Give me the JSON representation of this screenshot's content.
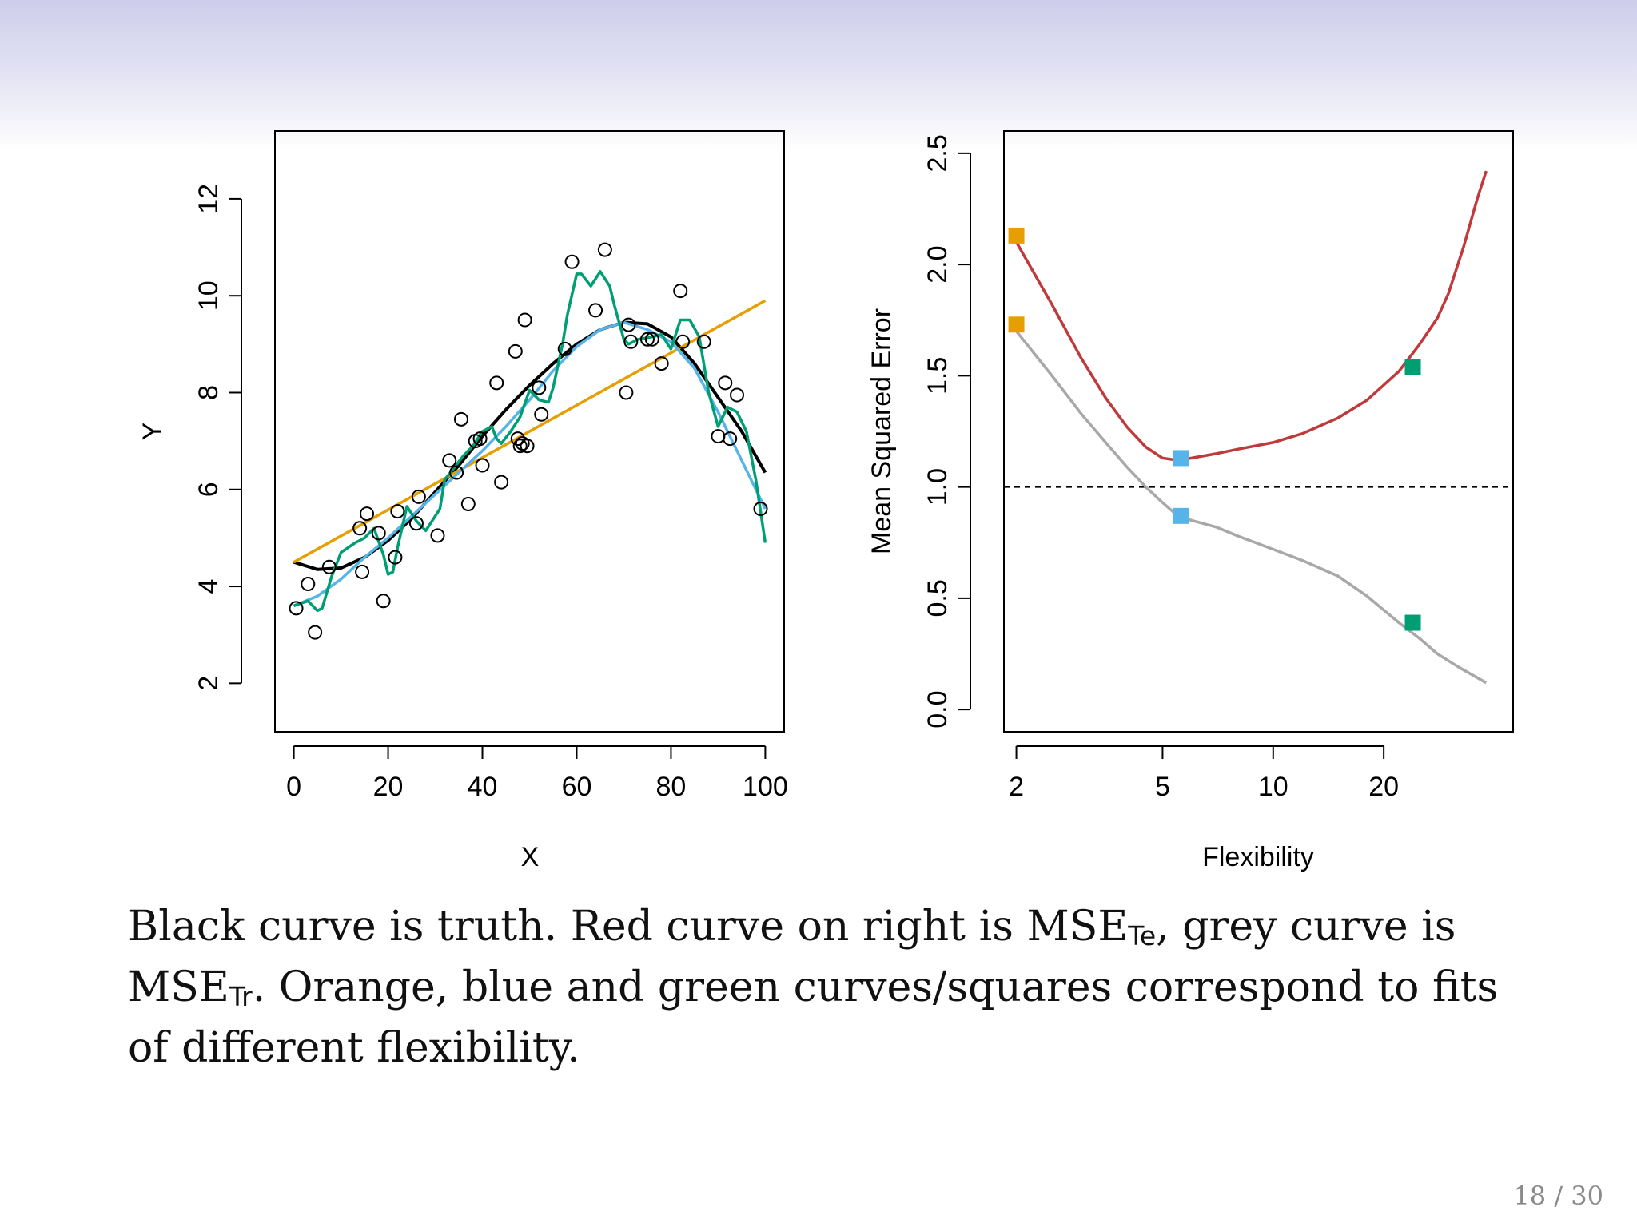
{
  "slide": {
    "caption": {
      "part1": "Black curve is truth. Red curve on right is MSE",
      "sub_te": "Te",
      "part2": ", grey curve is MSE",
      "sub_tr": "Tr",
      "part3": ". Orange, blue and green curves/squares correspond to fits of different flexibility."
    },
    "page_number": "18 / 30"
  },
  "chart_data": [
    {
      "type": "scatter",
      "xlabel": "X",
      "ylabel": "Y",
      "xlim": [
        -4,
        104
      ],
      "ylim": [
        1,
        13.4
      ],
      "x_ticks": [
        0,
        20,
        40,
        60,
        80,
        100
      ],
      "y_ticks": [
        2,
        4,
        6,
        8,
        10,
        12
      ],
      "grid": false,
      "points": {
        "x": [
          0.5,
          3,
          4.5,
          7.5,
          14,
          14.5,
          15.5,
          18,
          19,
          21.5,
          22,
          26,
          26.5,
          30.5,
          33,
          34.5,
          35.5,
          37,
          38.5,
          39.5,
          40,
          43,
          44,
          47,
          47.5,
          48,
          48.5,
          49,
          49.5,
          52,
          52.5,
          57.5,
          59,
          64,
          66,
          70.5,
          71,
          71.5,
          75,
          76,
          78,
          82,
          82.5,
          87,
          90,
          91.5,
          92.5,
          94,
          99
        ],
        "y": [
          3.55,
          4.05,
          3.05,
          4.4,
          5.2,
          4.3,
          5.5,
          5.1,
          3.7,
          4.6,
          5.55,
          5.3,
          5.85,
          5.05,
          6.6,
          6.35,
          7.45,
          5.7,
          7.0,
          7.05,
          6.5,
          8.2,
          6.15,
          8.85,
          7.05,
          6.9,
          6.95,
          9.5,
          6.9,
          8.1,
          7.55,
          8.9,
          10.7,
          9.7,
          10.95,
          8.0,
          9.4,
          9.05,
          9.1,
          9.1,
          8.6,
          10.1,
          9.05,
          9.05,
          7.1,
          8.2,
          7.05,
          7.95,
          5.6
        ]
      },
      "series": [
        {
          "name": "",
          "color": "#000000",
          "x": [
            0,
            5,
            10,
            15,
            20,
            25,
            30,
            35,
            40,
            45,
            50,
            55,
            60,
            65,
            70,
            75,
            80,
            85,
            90,
            95,
            100
          ],
          "y": [
            4.5,
            4.35,
            4.38,
            4.6,
            4.95,
            5.4,
            5.95,
            6.5,
            7.1,
            7.65,
            8.15,
            8.6,
            9.0,
            9.3,
            9.45,
            9.42,
            9.15,
            8.6,
            7.9,
            7.2,
            6.35
          ]
        },
        {
          "name": "",
          "color": "#e69f00",
          "x": [
            0,
            100
          ],
          "y": [
            4.5,
            9.9
          ]
        },
        {
          "name": "",
          "color": "#56b4e9",
          "x": [
            0,
            5,
            10,
            15,
            20,
            25,
            30,
            35,
            40,
            45,
            50,
            55,
            60,
            65,
            70,
            75,
            80,
            85,
            90,
            95,
            100
          ],
          "y": [
            3.6,
            3.8,
            4.15,
            4.6,
            5.0,
            5.45,
            5.9,
            6.35,
            6.8,
            7.3,
            7.85,
            8.45,
            8.95,
            9.3,
            9.45,
            9.3,
            9.05,
            8.5,
            7.6,
            6.6,
            5.6
          ]
        },
        {
          "name": "",
          "color": "#009e73",
          "x": [
            0,
            3,
            5,
            6,
            8,
            10,
            13,
            15,
            17,
            19,
            20,
            21,
            22,
            24,
            26,
            28,
            30,
            31,
            32,
            34,
            36,
            38,
            40,
            42,
            43,
            44,
            46,
            48,
            50,
            52,
            54,
            55,
            57,
            58,
            60,
            61,
            63,
            65,
            67,
            68,
            70,
            71,
            73,
            76,
            78,
            80,
            82,
            84,
            86,
            88,
            90,
            92,
            94,
            96,
            98,
            100
          ],
          "y": [
            3.6,
            3.7,
            3.5,
            3.55,
            4.2,
            4.7,
            4.9,
            5.0,
            5.2,
            4.65,
            4.25,
            4.3,
            4.8,
            5.65,
            5.35,
            5.15,
            5.45,
            5.6,
            6.2,
            6.45,
            6.7,
            6.9,
            7.2,
            7.3,
            7.05,
            6.95,
            7.2,
            7.5,
            8.05,
            7.85,
            7.8,
            8.1,
            9.0,
            9.6,
            10.45,
            10.45,
            10.2,
            10.5,
            10.2,
            9.8,
            9.1,
            9.0,
            9.1,
            9.15,
            9.2,
            8.9,
            9.5,
            9.5,
            9.15,
            8.0,
            7.3,
            7.7,
            7.6,
            7.2,
            6.2,
            4.9
          ]
        }
      ]
    },
    {
      "type": "line",
      "xlabel": "Flexibility",
      "ylabel": "Mean Squared Error",
      "x_scale": "log",
      "xlim": [
        1.85,
        45
      ],
      "ylim": [
        -0.1,
        2.6
      ],
      "x_ticks": [
        2,
        5,
        10,
        20
      ],
      "y_ticks": [
        0.0,
        0.5,
        1.0,
        1.5,
        2.0,
        2.5
      ],
      "grid": false,
      "reference_line": {
        "y": 1.0,
        "style": "dashed",
        "color": "#000000"
      },
      "series": [
        {
          "name": "",
          "color": "#c0393b",
          "x": [
            2,
            2.5,
            3,
            3.5,
            4,
            4.5,
            5,
            5.5,
            6,
            7,
            8,
            10,
            12,
            15,
            18,
            22,
            25,
            28,
            30,
            33,
            36,
            38
          ],
          "y": [
            2.1,
            1.82,
            1.58,
            1.4,
            1.27,
            1.18,
            1.13,
            1.12,
            1.13,
            1.15,
            1.17,
            1.2,
            1.24,
            1.31,
            1.39,
            1.52,
            1.64,
            1.76,
            1.87,
            2.08,
            2.3,
            2.42
          ]
        },
        {
          "name": "",
          "color": "#a8a8a8",
          "x": [
            2,
            2.5,
            3,
            3.5,
            4,
            4.5,
            5,
            5.5,
            6,
            7,
            8,
            10,
            12,
            15,
            18,
            22,
            25,
            28,
            32,
            38
          ],
          "y": [
            1.7,
            1.5,
            1.33,
            1.2,
            1.09,
            1.0,
            0.93,
            0.87,
            0.85,
            0.82,
            0.78,
            0.72,
            0.67,
            0.6,
            0.51,
            0.39,
            0.32,
            0.25,
            0.19,
            0.12
          ]
        }
      ],
      "markers": [
        {
          "x": 2,
          "y": 2.13,
          "color": "#e69f00"
        },
        {
          "x": 2,
          "y": 1.73,
          "color": "#e69f00"
        },
        {
          "x": 5.6,
          "y": 1.13,
          "color": "#56b4e9"
        },
        {
          "x": 5.6,
          "y": 0.87,
          "color": "#56b4e9"
        },
        {
          "x": 24,
          "y": 1.54,
          "color": "#009e73"
        },
        {
          "x": 24,
          "y": 0.39,
          "color": "#009e73"
        }
      ]
    }
  ]
}
